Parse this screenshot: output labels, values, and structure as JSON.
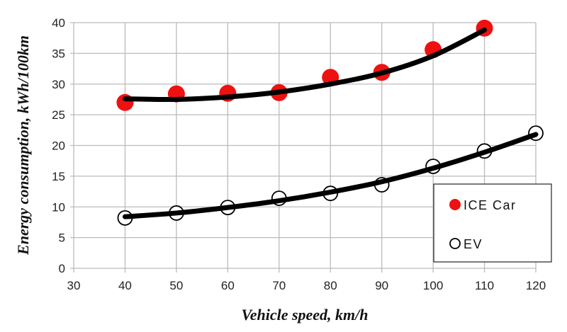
{
  "chart_data": {
    "type": "scatter",
    "title": "",
    "xlabel": "Vehicle speed, km/h",
    "ylabel": "Energy consumption, kWh/100km",
    "xlim": [
      30,
      120
    ],
    "ylim": [
      0,
      40
    ],
    "xticks": [
      30,
      40,
      50,
      60,
      70,
      80,
      90,
      100,
      110,
      120
    ],
    "yticks": [
      0,
      5,
      10,
      15,
      20,
      25,
      30,
      35,
      40
    ],
    "grid": true,
    "legend_position": "bottom-right",
    "series": [
      {
        "name": "ICE Car",
        "marker": "filled-circle",
        "color": "#ee1111",
        "x": [
          40,
          50,
          60,
          70,
          80,
          90,
          100,
          110
        ],
        "values": [
          27.0,
          28.4,
          28.5,
          28.6,
          31.1,
          31.9,
          35.6,
          39.1
        ],
        "trendline": {
          "x": [
            40,
            50,
            60,
            70,
            80,
            90,
            100,
            110
          ],
          "values": [
            27.6,
            27.5,
            27.9,
            28.7,
            30.0,
            31.8,
            34.6,
            38.8
          ]
        }
      },
      {
        "name": "EV",
        "marker": "open-circle",
        "color": "#000000",
        "x": [
          40,
          50,
          60,
          70,
          80,
          90,
          100,
          110,
          120
        ],
        "values": [
          8.2,
          9.0,
          9.9,
          11.4,
          12.2,
          13.6,
          16.6,
          19.1,
          22.0
        ],
        "trendline": {
          "x": [
            40,
            50,
            60,
            70,
            80,
            90,
            100,
            110,
            120
          ],
          "values": [
            8.4,
            9.0,
            9.9,
            11.0,
            12.4,
            14.1,
            16.3,
            18.9,
            21.8
          ]
        }
      }
    ]
  }
}
